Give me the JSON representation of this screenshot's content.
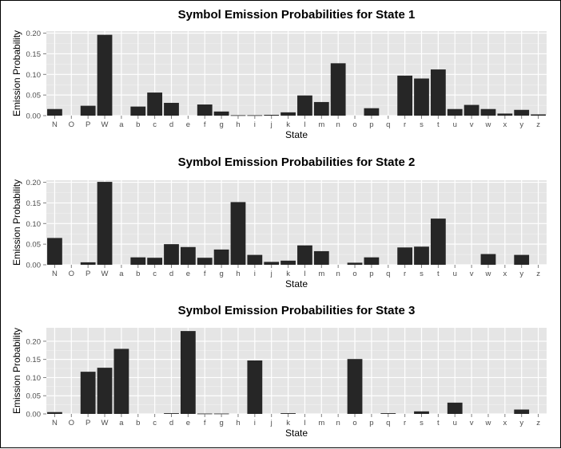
{
  "chart_data": [
    {
      "type": "bar",
      "title": "Symbol Emission Probabilities for State 1",
      "xlabel": "State",
      "ylabel": "Emission Probability",
      "ylim": [
        0,
        0.205
      ],
      "yticks": [
        0.0,
        0.05,
        0.1,
        0.15,
        0.2
      ],
      "ytick_labels": [
        "0.00",
        "0.05",
        "0.10",
        "0.15",
        "0.20"
      ],
      "grid": true,
      "bar_color": "#262626",
      "categories": [
        "N",
        "O",
        "P",
        "W",
        "a",
        "b",
        "c",
        "d",
        "e",
        "f",
        "g",
        "h",
        "i",
        "j",
        "k",
        "l",
        "m",
        "n",
        "o",
        "p",
        "q",
        "r",
        "s",
        "t",
        "u",
        "v",
        "w",
        "x",
        "y",
        "z"
      ],
      "values": [
        0.016,
        0,
        0.024,
        0.196,
        0,
        0.022,
        0.056,
        0.031,
        0,
        0.027,
        0.01,
        0.001,
        0.001,
        0.002,
        0.008,
        0.049,
        0.033,
        0.127,
        0,
        0.018,
        0,
        0.097,
        0.09,
        0.112,
        0.016,
        0.026,
        0.016,
        0.005,
        0.014,
        0.003
      ]
    },
    {
      "type": "bar",
      "title": "Symbol Emission Probabilities for State 2",
      "xlabel": "State",
      "ylabel": "Emission Probability",
      "ylim": [
        0,
        0.205
      ],
      "yticks": [
        0.0,
        0.05,
        0.1,
        0.15,
        0.2
      ],
      "ytick_labels": [
        "0.00",
        "0.05",
        "0.10",
        "0.15",
        "0.20"
      ],
      "grid": true,
      "bar_color": "#262626",
      "categories": [
        "N",
        "O",
        "P",
        "W",
        "a",
        "b",
        "c",
        "d",
        "e",
        "f",
        "g",
        "h",
        "i",
        "j",
        "k",
        "l",
        "m",
        "n",
        "o",
        "p",
        "q",
        "r",
        "s",
        "t",
        "u",
        "v",
        "w",
        "x",
        "y",
        "z"
      ],
      "values": [
        0.065,
        0,
        0.006,
        0.201,
        0,
        0.018,
        0.017,
        0.05,
        0.043,
        0.017,
        0.037,
        0.152,
        0.024,
        0.007,
        0.01,
        0.047,
        0.033,
        0,
        0.005,
        0.018,
        0,
        0.042,
        0.044,
        0.112,
        0,
        0,
        0.026,
        0,
        0.024,
        0
      ]
    },
    {
      "type": "bar",
      "title": "Symbol Emission Probabilities for State 3",
      "xlabel": "State",
      "ylabel": "Emission Probability",
      "ylim": [
        0,
        0.237
      ],
      "yticks": [
        0.0,
        0.05,
        0.1,
        0.15,
        0.2
      ],
      "ytick_labels": [
        "0.00",
        "0.05",
        "0.10",
        "0.15",
        "0.20"
      ],
      "grid": true,
      "bar_color": "#262626",
      "categories": [
        "N",
        "O",
        "P",
        "W",
        "a",
        "b",
        "c",
        "d",
        "e",
        "f",
        "g",
        "h",
        "i",
        "j",
        "k",
        "l",
        "m",
        "n",
        "o",
        "p",
        "q",
        "r",
        "s",
        "t",
        "u",
        "v",
        "w",
        "x",
        "y",
        "z"
      ],
      "values": [
        0.005,
        0,
        0.116,
        0.127,
        0.179,
        0,
        0,
        0.002,
        0.228,
        0.001,
        0.001,
        0,
        0.147,
        0,
        0.002,
        0,
        0,
        0,
        0.151,
        0,
        0.002,
        0,
        0.007,
        0,
        0.031,
        0,
        0,
        0,
        0.012,
        0
      ]
    }
  ]
}
